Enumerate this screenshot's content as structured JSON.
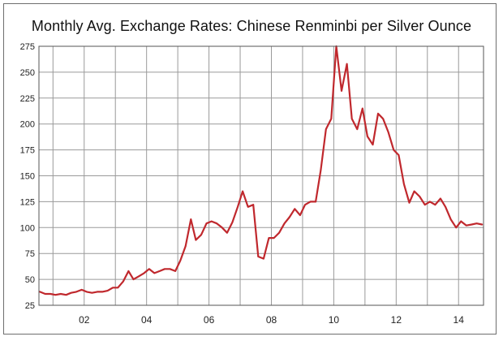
{
  "chart_data": {
    "type": "line",
    "title": "Monthly Avg. Exchange Rates: Chinese Renminbi per Silver Ounce",
    "xlabel": "",
    "ylabel": "",
    "xlim": [
      2000.55,
      2014.8
    ],
    "ylim": [
      25,
      275
    ],
    "y_ticks": [
      25,
      50,
      75,
      100,
      125,
      150,
      175,
      200,
      225,
      250,
      275
    ],
    "x_tick_labels": [
      {
        "year": 2002,
        "label": "02"
      },
      {
        "year": 2004,
        "label": "04"
      },
      {
        "year": 2006,
        "label": "06"
      },
      {
        "year": 2008,
        "label": "08"
      },
      {
        "year": 2010,
        "label": "10"
      },
      {
        "year": 2012,
        "label": "12"
      },
      {
        "year": 2014,
        "label": "14"
      }
    ],
    "grid": true,
    "line_color": "#c0282d",
    "series": [
      {
        "name": "",
        "x": [
          2000.58,
          2000.75,
          2000.92,
          2001.08,
          2001.25,
          2001.42,
          2001.58,
          2001.75,
          2001.92,
          2002.08,
          2002.25,
          2002.42,
          2002.58,
          2002.75,
          2002.92,
          2003.08,
          2003.25,
          2003.42,
          2003.58,
          2003.75,
          2003.92,
          2004.08,
          2004.25,
          2004.42,
          2004.58,
          2004.75,
          2004.92,
          2005.08,
          2005.25,
          2005.42,
          2005.58,
          2005.75,
          2005.92,
          2006.08,
          2006.25,
          2006.42,
          2006.58,
          2006.75,
          2006.92,
          2007.08,
          2007.25,
          2007.42,
          2007.58,
          2007.75,
          2007.92,
          2008.08,
          2008.25,
          2008.42,
          2008.58,
          2008.75,
          2008.92,
          2009.08,
          2009.25,
          2009.42,
          2009.58,
          2009.75,
          2009.92,
          2010.08,
          2010.25,
          2010.42,
          2010.58,
          2010.75,
          2010.92,
          2011.08,
          2011.25,
          2011.42,
          2011.58,
          2011.75,
          2011.92,
          2012.08,
          2012.25,
          2012.42,
          2012.58,
          2012.75,
          2012.92,
          2013.08,
          2013.25,
          2013.42,
          2013.58,
          2013.75,
          2013.92,
          2014.08,
          2014.25,
          2014.42,
          2014.58,
          2014.75
        ],
        "y": [
          38,
          36,
          36,
          35,
          36,
          35,
          37,
          38,
          40,
          38,
          37,
          38,
          38,
          39,
          42,
          42,
          48,
          58,
          50,
          53,
          56,
          60,
          56,
          58,
          60,
          60,
          58,
          68,
          82,
          108,
          88,
          93,
          104,
          106,
          104,
          100,
          95,
          105,
          120,
          135,
          120,
          122,
          72,
          70,
          90,
          90,
          95,
          104,
          110,
          118,
          112,
          122,
          125,
          125,
          155,
          195,
          205,
          275,
          232,
          258,
          205,
          195,
          215,
          188,
          180,
          210,
          205,
          192,
          175,
          170,
          142,
          124,
          135,
          130,
          122,
          125,
          122,
          128,
          120,
          108,
          100,
          106,
          102,
          103,
          104,
          103
        ]
      }
    ]
  }
}
